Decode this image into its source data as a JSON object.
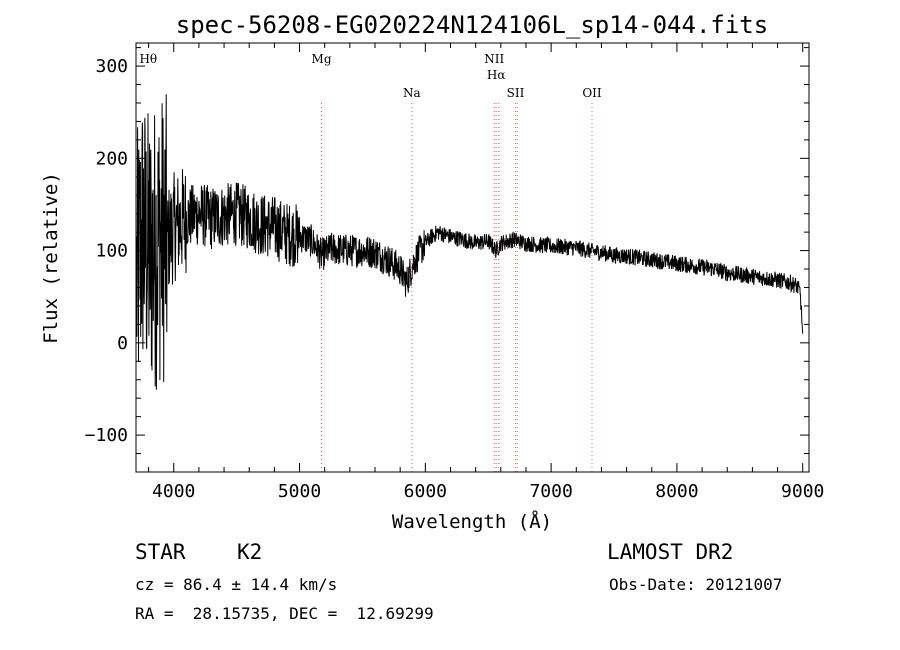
{
  "chart_data": {
    "type": "line",
    "title": "spec-56208-EG020224N124106L_sp14-044.fits",
    "xlabel": "Wavelength (Å)",
    "ylabel": "Flux (relative)",
    "xlim": [
      3700,
      9050
    ],
    "ylim": [
      -140,
      325
    ],
    "xticks": [
      4000,
      5000,
      6000,
      7000,
      8000,
      9000
    ],
    "yticks": [
      -100,
      0,
      100,
      200,
      300
    ],
    "grid": false,
    "line_color": "#000000",
    "marker_color": "#e06060",
    "spectral_lines": [
      {
        "label": "Hθ",
        "wavelength": 3798,
        "row": "top"
      },
      {
        "label": "Mg",
        "wavelength": 5175,
        "row": "top"
      },
      {
        "label": "Na",
        "wavelength": 5893,
        "row": "low"
      },
      {
        "label": "NII",
        "wavelength": 6548,
        "row": "top"
      },
      {
        "label": "Hα",
        "wavelength": 6563,
        "row": "mid"
      },
      {
        "label": "NII",
        "wavelength": 6584,
        "row": "none"
      },
      {
        "label": "SII",
        "wavelength": 6717,
        "row": "low"
      },
      {
        "label": "SII",
        "wavelength": 6731,
        "row": "none"
      },
      {
        "label": "OII",
        "wavelength": 7325,
        "row": "low"
      }
    ],
    "series": [
      {
        "x": [
          3700,
          3750,
          3800,
          3850,
          3900,
          3950,
          4000,
          4100,
          4200,
          4300,
          4400,
          4500,
          4600,
          4700,
          4800,
          4900,
          5000,
          5100,
          5175,
          5250,
          5400,
          5500,
          5600,
          5700,
          5800,
          5850,
          5900,
          5950,
          6000,
          6050,
          6100,
          6200,
          6300,
          6400,
          6500,
          6563,
          6600,
          6700,
          6800,
          6900,
          7000,
          7100,
          7200,
          7300,
          7400,
          7500,
          7600,
          7700,
          7800,
          7900,
          8000,
          8100,
          8200,
          8300,
          8400,
          8500,
          8600,
          8700,
          8800,
          8900,
          8950,
          8980,
          9000
        ],
        "y": [
          60,
          120,
          95,
          105,
          115,
          110,
          125,
          135,
          140,
          135,
          138,
          140,
          135,
          128,
          125,
          118,
          116,
          110,
          95,
          102,
          100,
          100,
          98,
          90,
          80,
          65,
          85,
          98,
          108,
          115,
          120,
          115,
          112,
          108,
          110,
          100,
          108,
          112,
          108,
          106,
          105,
          104,
          103,
          100,
          98,
          95,
          94,
          92,
          90,
          88,
          86,
          84,
          82,
          80,
          76,
          74,
          72,
          70,
          68,
          65,
          62,
          55,
          10
        ]
      }
    ]
  },
  "info": {
    "object_class": "STAR",
    "subclass": "K2",
    "survey": "LAMOST DR2",
    "cz": "cz = 86.4 ± 14.4 km/s",
    "obs_date": "Obs-Date: 20121007",
    "coords": "RA =  28.15735, DEC =  12.69299"
  }
}
